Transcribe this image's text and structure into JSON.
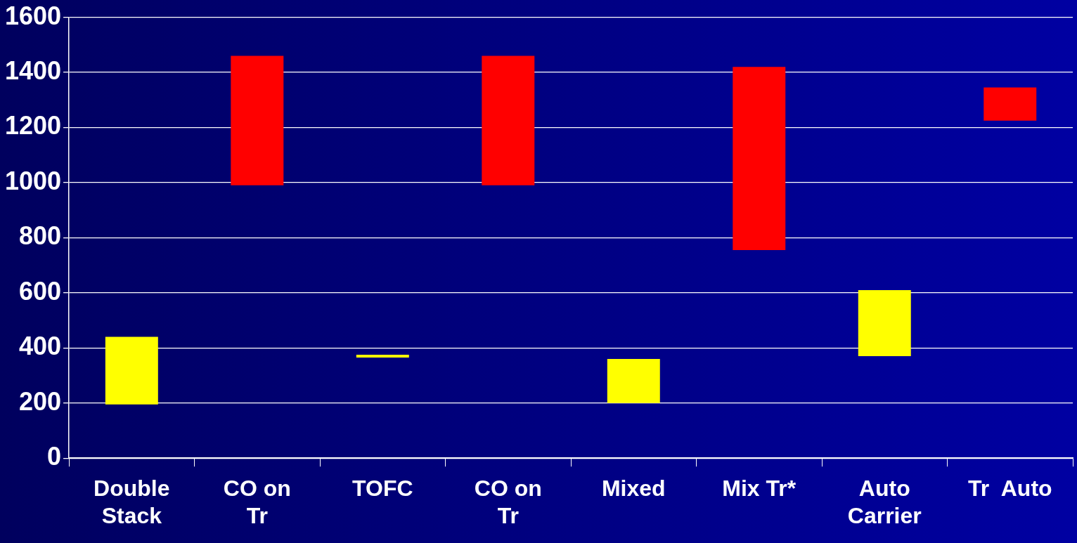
{
  "chart_data": {
    "type": "bar",
    "categories": [
      "Double Stack",
      "CO on Tr",
      "TOFC",
      "CO on Tr",
      "Mixed",
      "Mix Tr*",
      "Auto Carrier",
      "Tr  Auto"
    ],
    "base": [
      195,
      990,
      365,
      990,
      200,
      755,
      370,
      1225
    ],
    "values": [
      245,
      470,
      10,
      470,
      160,
      665,
      240,
      120
    ],
    "colors": [
      "#ffff00",
      "#ff0000",
      "#ffff00",
      "#ff0000",
      "#ffff00",
      "#ff0000",
      "#ffff00",
      "#ff0000"
    ],
    "ylim": [
      0,
      1600
    ],
    "yticks": [
      0,
      200,
      400,
      600,
      800,
      1000,
      1200,
      1400,
      1600
    ],
    "grid": "y",
    "legend": false
  }
}
